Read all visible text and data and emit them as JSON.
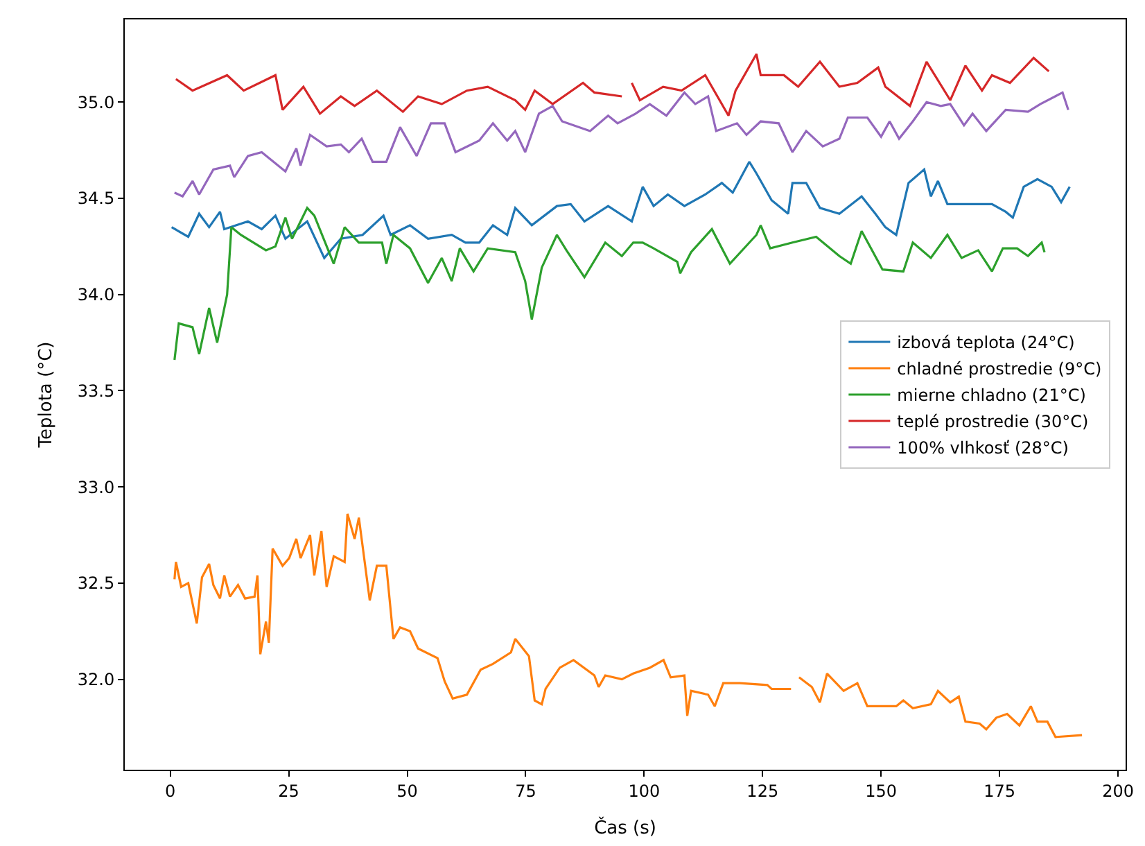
{
  "chart_data": {
    "type": "line",
    "xlabel": "Čas (s)",
    "ylabel": "Teplota (°C)",
    "xlim": [
      -9.6,
      201.6
    ],
    "xticks": [
      0,
      25,
      50,
      75,
      100,
      125,
      150,
      175,
      200
    ],
    "ylim": [
      31.53,
      35.43
    ],
    "yticks": [
      {
        "value": 32.0,
        "label": "32.0"
      },
      {
        "value": 32.5,
        "label": "32.5"
      },
      {
        "value": 33.0,
        "label": "33.0"
      },
      {
        "value": 33.5,
        "label": "33.5"
      },
      {
        "value": 34.0,
        "label": "34.0"
      },
      {
        "value": 34.5,
        "label": "34.5"
      },
      {
        "value": 35.0,
        "label": "35.0"
      }
    ],
    "legend": "right",
    "marker": "none",
    "line_style": "solid",
    "series": [
      {
        "name": "izbová teplota (24°C)",
        "color": "#1f77b4",
        "x": [
          0.3,
          3.8,
          6.1,
          8.2,
          10.5,
          11.4,
          16.4,
          19.3,
          22.2,
          24.3,
          28.9,
          32.5,
          36,
          40.6,
          45,
          46.5,
          50.6,
          54.4,
          59.4,
          62.3,
          65.2,
          68.1,
          71.1,
          72.8,
          76.3,
          81.6,
          84.5,
          87.4,
          92.4,
          97.4,
          99.7,
          102,
          105,
          108.5,
          112.9,
          116.4,
          118.7,
          122.2,
          123.7,
          126.9,
          130.4,
          131.3,
          134.2,
          137.1,
          141.2,
          145.9,
          148.8,
          150.9,
          153.2,
          155.8,
          159.1,
          160.5,
          162,
          164,
          167.8,
          173.4,
          176.3,
          177.8,
          180.1,
          183,
          186,
          188,
          189.8
        ],
        "values": [
          34.35,
          34.3,
          34.42,
          34.35,
          34.43,
          34.34,
          34.38,
          34.34,
          34.41,
          34.29,
          34.38,
          34.19,
          34.29,
          34.31,
          34.41,
          34.31,
          34.36,
          34.29,
          34.31,
          34.27,
          34.27,
          34.36,
          34.31,
          34.45,
          34.36,
          34.46,
          34.47,
          34.38,
          34.46,
          34.38,
          34.56,
          34.46,
          34.52,
          34.46,
          34.52,
          34.58,
          34.53,
          34.69,
          34.63,
          34.49,
          34.42,
          34.58,
          34.58,
          34.45,
          34.42,
          34.51,
          34.42,
          34.35,
          34.31,
          34.58,
          34.65,
          34.51,
          34.59,
          34.47,
          34.47,
          34.47,
          34.43,
          34.4,
          34.56,
          34.6,
          34.56,
          34.48,
          34.56
        ]
      },
      {
        "name": "chladné prostredie (9°C)",
        "color": "#ff7f0e",
        "x": [
          0.9,
          1.2,
          2.3,
          3.8,
          5.6,
          6.7,
          8.2,
          9.1,
          10.5,
          11.4,
          12.6,
          14.3,
          15.8,
          17.8,
          18.4,
          19,
          20.2,
          20.8,
          21.6,
          23.7,
          25.1,
          26.6,
          27.5,
          29.5,
          30.4,
          31.9,
          33,
          34.5,
          36.8,
          37.4,
          38.9,
          39.8,
          42.1,
          43.6,
          45.6,
          47.1,
          48.5,
          50.6,
          52.3,
          56.4,
          57.9,
          59.6,
          62.6,
          65.5,
          68.1,
          71.9,
          72.8,
          75.7,
          76.9,
          78.4,
          79.2,
          82.2,
          85.1,
          89.5,
          90.4,
          91.8,
          95.3,
          97.7,
          101.2,
          104.1,
          105.6,
          108.5,
          109.1,
          109.9,
          113.5,
          114.9,
          116.7,
          120.2,
          126,
          126.9,
          131,
          131.8,
          132.7,
          135.4,
          137.1,
          138.6,
          142.1,
          145,
          147.1,
          153.2,
          154.7,
          156.7,
          160.5,
          162,
          164.6,
          166.4,
          167.8,
          170.8,
          172.2,
          174.3,
          176.6,
          179.2,
          181.6,
          183,
          185.1,
          186.8,
          192.4
        ],
        "values": [
          32.52,
          32.61,
          32.48,
          32.5,
          32.29,
          32.53,
          32.6,
          32.49,
          32.42,
          32.54,
          32.43,
          32.49,
          32.42,
          32.43,
          32.54,
          32.13,
          32.3,
          32.19,
          32.68,
          32.59,
          32.63,
          32.73,
          32.63,
          32.75,
          32.54,
          32.77,
          32.48,
          32.64,
          32.61,
          32.86,
          32.73,
          32.84,
          32.41,
          32.59,
          32.59,
          32.21,
          32.27,
          32.25,
          32.16,
          32.11,
          31.99,
          31.9,
          31.92,
          32.05,
          32.08,
          32.14,
          32.21,
          32.12,
          31.89,
          31.87,
          31.95,
          32.06,
          32.1,
          32.02,
          31.96,
          32.02,
          32.0,
          32.03,
          32.06,
          32.1,
          32.01,
          32.02,
          31.81,
          31.94,
          31.92,
          31.86,
          31.98,
          31.98,
          31.97,
          31.95,
          31.95,
          null,
          32.01,
          31.96,
          31.88,
          32.03,
          31.94,
          31.98,
          31.86,
          31.86,
          31.89,
          31.85,
          31.87,
          31.94,
          31.88,
          31.91,
          31.78,
          31.77,
          31.74,
          31.8,
          31.82,
          31.76,
          31.86,
          31.78,
          31.78,
          31.7,
          31.71
        ]
      },
      {
        "name": "mierne chladno (21°C)",
        "color": "#2ca02c",
        "x": [
          0.9,
          1.8,
          4.7,
          6.1,
          8.2,
          9.9,
          12,
          12.9,
          14.9,
          20.2,
          22.2,
          24.3,
          25.7,
          28.9,
          30.4,
          34.5,
          36.8,
          39.8,
          44.7,
          45.6,
          47.1,
          50.6,
          54.4,
          57.3,
          59.4,
          61.1,
          64,
          67,
          72.8,
          74.9,
          76.3,
          78.4,
          81.6,
          83.6,
          87.4,
          91.8,
          95.3,
          97.7,
          99.7,
          102,
          107,
          107.6,
          109.9,
          114.3,
          118.1,
          123.7,
          124.6,
          126.6,
          131.3,
          136.3,
          141.2,
          143.6,
          145.9,
          150.3,
          154.7,
          156.7,
          160.5,
          164,
          167,
          170.5,
          173.4,
          175.7,
          178.7,
          181,
          183.9,
          184.5
        ],
        "values": [
          33.66,
          33.85,
          33.83,
          33.69,
          33.93,
          33.75,
          34.0,
          34.35,
          34.31,
          34.23,
          34.25,
          34.4,
          34.29,
          34.45,
          34.41,
          34.16,
          34.35,
          34.27,
          34.27,
          34.16,
          34.31,
          34.24,
          34.06,
          34.19,
          34.07,
          34.24,
          34.12,
          34.24,
          34.22,
          34.07,
          33.87,
          34.14,
          34.31,
          34.23,
          34.09,
          34.27,
          34.2,
          34.27,
          34.27,
          34.24,
          34.17,
          34.11,
          34.22,
          34.34,
          34.16,
          34.31,
          34.36,
          34.24,
          34.27,
          34.3,
          34.2,
          34.16,
          34.33,
          34.13,
          34.12,
          34.27,
          34.19,
          34.31,
          34.19,
          34.23,
          34.12,
          34.24,
          34.24,
          34.2,
          34.27,
          34.22
        ]
      },
      {
        "name": "teplé prostredie (30°C)",
        "color": "#d62728",
        "x": [
          1.2,
          4.7,
          12,
          15.5,
          22.2,
          23.7,
          28.1,
          31.6,
          36,
          38.9,
          43.6,
          49.1,
          52.3,
          57.3,
          62.6,
          67,
          72.8,
          74.9,
          76.9,
          80.7,
          87.1,
          89.5,
          95.3,
          96.4,
          97.4,
          99.1,
          104,
          107.9,
          112.9,
          117.8,
          119.3,
          123.7,
          124.6,
          129.5,
          132.5,
          137.1,
          141.2,
          145,
          149.4,
          150.9,
          156.1,
          159.6,
          164.6,
          167.8,
          171.3,
          173.4,
          177.2,
          182.2,
          185.4
        ],
        "values": [
          35.12,
          35.06,
          35.14,
          35.06,
          35.14,
          34.96,
          35.08,
          34.94,
          35.03,
          34.98,
          35.06,
          34.95,
          35.03,
          34.99,
          35.06,
          35.08,
          35.01,
          34.96,
          35.06,
          34.99,
          35.1,
          35.05,
          35.03,
          null,
          35.1,
          35.01,
          35.08,
          35.06,
          35.14,
          34.93,
          35.06,
          35.25,
          35.14,
          35.14,
          35.08,
          35.21,
          35.08,
          35.1,
          35.18,
          35.08,
          34.98,
          35.21,
          35.01,
          35.19,
          35.06,
          35.14,
          35.1,
          35.23,
          35.16
        ]
      },
      {
        "name": "100% vlhkosť (28°C)",
        "color": "#9467bd",
        "x": [
          0.9,
          2.6,
          4.7,
          6.1,
          9.1,
          12.6,
          13.5,
          16.4,
          19.3,
          24.3,
          26.6,
          27.5,
          29.5,
          33,
          36,
          37.7,
          40.4,
          42.7,
          45.6,
          48.5,
          52,
          55,
          57.9,
          60.2,
          65.2,
          68.1,
          71.1,
          72.8,
          74.9,
          77.8,
          80.7,
          82.7,
          88.6,
          92.4,
          94.4,
          98.2,
          101.2,
          104.7,
          108.5,
          110.8,
          113.5,
          115.2,
          119.6,
          121.6,
          124.6,
          128.4,
          131.3,
          134.2,
          137.7,
          141.2,
          143,
          147.1,
          150,
          151.8,
          153.8,
          156.7,
          159.6,
          162.6,
          164.6,
          167.5,
          169.3,
          172.2,
          176.3,
          181,
          183.6,
          188.3,
          189.5
        ],
        "values": [
          34.53,
          34.51,
          34.59,
          34.52,
          34.65,
          34.67,
          34.61,
          34.72,
          34.74,
          34.64,
          34.76,
          34.67,
          34.83,
          34.77,
          34.78,
          34.74,
          34.81,
          34.69,
          34.69,
          34.87,
          34.72,
          34.89,
          34.89,
          34.74,
          34.8,
          34.89,
          34.8,
          34.85,
          34.74,
          34.94,
          34.98,
          34.9,
          34.85,
          34.93,
          34.89,
          34.94,
          34.99,
          34.93,
          35.05,
          34.99,
          35.03,
          34.85,
          34.89,
          34.83,
          34.9,
          34.89,
          34.74,
          34.85,
          34.77,
          34.81,
          34.92,
          34.92,
          34.82,
          34.9,
          34.81,
          34.9,
          35.0,
          34.98,
          34.99,
          34.88,
          34.94,
          34.85,
          34.96,
          34.95,
          34.99,
          35.05,
          34.96
        ]
      }
    ]
  }
}
